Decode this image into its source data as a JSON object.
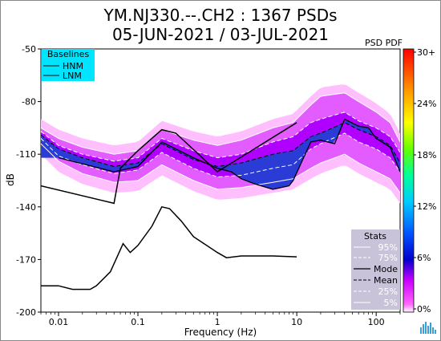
{
  "header": {
    "title_line1": "YM.NJ330.--.CH2 : 1367 PSDs",
    "title_line2": "05-JUN-2021 / 03-JUL-2021"
  },
  "chart_data": {
    "type": "heatmap",
    "title": "YM.NJ330.--.CH2 : 1367 PSDs",
    "subtitle": "05-JUN-2021 / 03-JUL-2021",
    "xlabel": "Frequency (Hz)",
    "ylabel": "dB",
    "xscale": "log",
    "xlim": [
      0.006,
      200
    ],
    "ylim": [
      -200,
      -50
    ],
    "x_ticks": [
      0.01,
      0.1,
      1,
      10,
      100
    ],
    "x_tick_labels": [
      "0.01",
      "0.1",
      "1",
      "10",
      "100"
    ],
    "y_ticks": [
      -50,
      -80,
      -110,
      -140,
      -170,
      -200
    ],
    "colorbar": {
      "label": "PSD PDF",
      "tick_labels": [
        "30+",
        "24%",
        "18%",
        "12%",
        "6%",
        "0%"
      ],
      "range": [
        0,
        30
      ]
    },
    "baselines_legend": {
      "title": "Baselines",
      "entries": [
        "HNM",
        "LNM"
      ],
      "background": "#00e5ff"
    },
    "stats_legend": {
      "title": "Stats",
      "entries": [
        "95%",
        "75%",
        "Mode",
        "Mean",
        "25%",
        "5%"
      ],
      "background": "#c8c3d8"
    },
    "series": [
      {
        "name": "HNM",
        "x": [
          0.006,
          0.05,
          0.06,
          0.1,
          0.2,
          0.3,
          1,
          10
        ],
        "y": [
          -128,
          -138,
          -118,
          -108,
          -96,
          -98,
          -120,
          -92
        ]
      },
      {
        "name": "LNM",
        "x": [
          0.006,
          0.01,
          0.015,
          0.025,
          0.03,
          0.045,
          0.065,
          0.08,
          0.1,
          0.15,
          0.2,
          0.25,
          0.35,
          0.5,
          1,
          1.3,
          2,
          5,
          10
        ],
        "y": [
          -185,
          -185,
          -187,
          -187,
          -185,
          -177,
          -161,
          -166,
          -162,
          -151,
          -140,
          -141,
          -148,
          -157,
          -166,
          -169,
          -168,
          -168,
          -168.5
        ]
      },
      {
        "name": "Mode",
        "x": [
          0.01,
          0.05,
          0.1,
          0.2,
          0.5,
          1,
          1.5,
          2,
          3,
          5,
          8,
          9,
          15,
          20,
          30,
          40,
          60,
          80,
          100,
          150,
          200
        ],
        "y": [
          -112,
          -120,
          -117,
          -103,
          -112,
          -118,
          -120,
          -124,
          -127,
          -130,
          -128,
          -125,
          -103,
          -102,
          -104,
          -90,
          -94,
          -95,
          -101,
          -106,
          -120
        ]
      },
      {
        "name": "Mean",
        "x": [
          0.006,
          0.01,
          0.02,
          0.05,
          0.1,
          0.2,
          0.5,
          1,
          2,
          5,
          9,
          15,
          20,
          40,
          60,
          100,
          150,
          200
        ],
        "y": [
          -99,
          -107,
          -112,
          -117,
          -115,
          -104,
          -113,
          -117,
          -115,
          -110,
          -108,
          -100,
          -98,
          -92,
          -96,
          -100,
          -105,
          -115
        ]
      },
      {
        "name": "95%",
        "x": [
          0.006,
          0.01,
          0.02,
          0.05,
          0.1,
          0.2,
          0.5,
          1,
          2,
          5,
          9,
          15,
          20,
          40,
          60,
          100,
          150,
          200
        ],
        "y": [
          -95,
          -101,
          -106,
          -110,
          -108,
          -96,
          -102,
          -105,
          -102,
          -95,
          -92,
          -82,
          -77,
          -75,
          -80,
          -86,
          -92,
          -103
        ]
      },
      {
        "name": "75%",
        "x": [
          0.006,
          0.01,
          0.02,
          0.05,
          0.1,
          0.2,
          0.5,
          1,
          2,
          5,
          9,
          15,
          20,
          40,
          60,
          100,
          150,
          200
        ],
        "y": [
          -97,
          -105,
          -110,
          -114,
          -112,
          -101,
          -108,
          -112,
          -110,
          -103,
          -100,
          -92,
          -90,
          -86,
          -91,
          -95,
          -100,
          -109
        ]
      },
      {
        "name": "25%",
        "x": [
          0.006,
          0.01,
          0.02,
          0.05,
          0.1,
          0.2,
          0.5,
          1,
          2,
          5,
          9,
          15,
          20,
          40,
          60,
          100,
          150,
          200
        ],
        "y": [
          -101,
          -111,
          -116,
          -121,
          -119,
          -109,
          -118,
          -123,
          -122,
          -118,
          -116,
          -107,
          -104,
          -98,
          -103,
          -107,
          -112,
          -120
        ]
      },
      {
        "name": "5%",
        "x": [
          0.006,
          0.01,
          0.02,
          0.05,
          0.1,
          0.2,
          0.5,
          1,
          2,
          5,
          9,
          15,
          20,
          40,
          60,
          100,
          150,
          200
        ],
        "y": [
          -104,
          -114,
          -121,
          -126,
          -125,
          -116,
          -125,
          -130,
          -129,
          -126,
          -124,
          -118,
          -115,
          -110,
          -115,
          -120,
          -124,
          -132
        ]
      }
    ]
  }
}
